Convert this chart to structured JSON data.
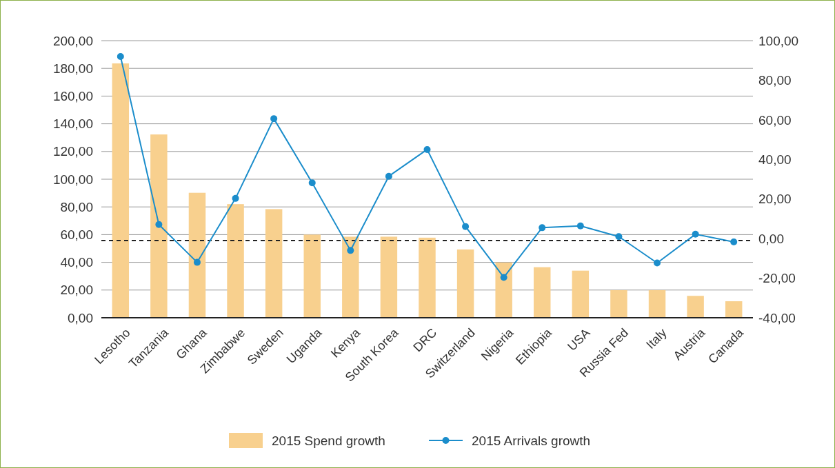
{
  "chart_data": {
    "type": "bar",
    "categories": [
      "Lesotho",
      "Tanzania",
      "Ghana",
      "Zimbabwe",
      "Sweden",
      "Uganda",
      "Kenya",
      "South Korea",
      "DRC",
      "Switzerland",
      "Nigeria",
      "Ethiopia",
      "USA",
      "Russia Fed",
      "Italy",
      "Austria",
      "Canada"
    ],
    "series": [
      {
        "name": "2015 Spend growth",
        "color": "#f8d08e",
        "values": [
          183.6,
          132.3,
          90.2,
          82,
          78.4,
          60,
          58.5,
          58.5,
          57.8,
          49.3,
          39.9,
          36.5,
          34,
          19.9,
          19.9,
          15.8,
          11.9
        ]
      },
      {
        "name": "2015 Arrivals growth",
        "type": "line",
        "axis": "y2",
        "color": "#1b8dcb",
        "values": [
          92,
          7.1,
          -12,
          20.3,
          60.6,
          28.2,
          -6,
          31.5,
          45,
          6.1,
          -19.6,
          5.5,
          6.4,
          1,
          -12.3,
          2.2,
          -1.7
        ]
      }
    ],
    "ylim": [
      0,
      200
    ],
    "yticks": [
      {
        "value": 0,
        "label": "0,00"
      },
      {
        "value": 20,
        "label": "20,00"
      },
      {
        "value": 40,
        "label": "40,00"
      },
      {
        "value": 60,
        "label": "60,00"
      },
      {
        "value": 80,
        "label": "80,00"
      },
      {
        "value": 100,
        "label": "100,00"
      },
      {
        "value": 120,
        "label": "120,00"
      },
      {
        "value": 140,
        "label": "140,00"
      },
      {
        "value": 160,
        "label": "160,00"
      },
      {
        "value": 180,
        "label": "180,00"
      },
      {
        "value": 200,
        "label": "200,00"
      }
    ],
    "y2lim": [
      -40,
      100
    ],
    "y2ticks": [
      {
        "value": -40,
        "label": "-40,00"
      },
      {
        "value": -20,
        "label": "-20,00"
      },
      {
        "value": 0,
        "label": "0,00"
      },
      {
        "value": 20,
        "label": "20,00"
      },
      {
        "value": 40,
        "label": "40,00"
      },
      {
        "value": 60,
        "label": "60,00"
      },
      {
        "value": 80,
        "label": "80,00"
      },
      {
        "value": 100,
        "label": "100,00"
      }
    ],
    "ref_lines": [
      {
        "axis": "y",
        "value": 55.7,
        "color": "#222222",
        "line_style": "dashed"
      }
    ],
    "grid": "y",
    "legend": "bottom",
    "marker": "circle"
  }
}
